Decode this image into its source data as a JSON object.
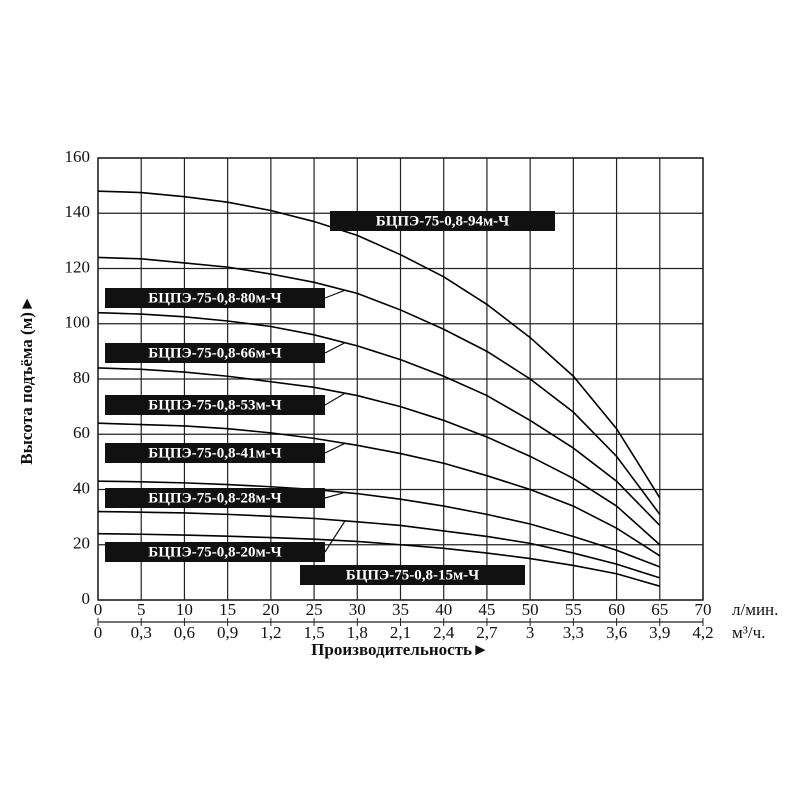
{
  "chart_data": {
    "type": "line",
    "y_label": "Высота подъёма (м)►",
    "x_label": "Производительность►",
    "x_unit": "л/мин.",
    "x2_unit": "м³/ч.",
    "x": [
      0,
      5,
      10,
      15,
      20,
      25,
      30,
      35,
      40,
      45,
      50,
      55,
      60,
      65
    ],
    "series": [
      {
        "name": "БЦПЭ-75-0,8-94м-Ч",
        "color": "#000000",
        "values": [
          148,
          147.5,
          146,
          144,
          141,
          137,
          132,
          125,
          117,
          107,
          95,
          81,
          62,
          37
        ]
      },
      {
        "name": "БЦПЭ-75-0,8-80м-Ч",
        "color": "#000000",
        "values": [
          124,
          123.5,
          122,
          120.5,
          118,
          115,
          111,
          105,
          98,
          90,
          80,
          68,
          52,
          31
        ]
      },
      {
        "name": "БЦПЭ-75-0,8-66м-Ч",
        "color": "#000000",
        "values": [
          104,
          103.5,
          102.5,
          101,
          99,
          96,
          92,
          87,
          81,
          74,
          65,
          55,
          43,
          27
        ]
      },
      {
        "name": "БЦПЭ-75-0,8-53м-Ч",
        "color": "#000000",
        "values": [
          84,
          83.5,
          82.5,
          81,
          79,
          77,
          74,
          70,
          65,
          59,
          52,
          44,
          34,
          20
        ]
      },
      {
        "name": "БЦПЭ-75-0,8-41м-Ч",
        "color": "#000000",
        "values": [
          64,
          63.5,
          63,
          62,
          60.5,
          58.5,
          56,
          53,
          49.5,
          45,
          40,
          34,
          26,
          16
        ]
      },
      {
        "name": "БЦПЭ-75-0,8-28м-Ч",
        "color": "#000000",
        "values": [
          43,
          42.8,
          42.4,
          41.8,
          41,
          40,
          38.5,
          36.5,
          34,
          31,
          27.5,
          23,
          18,
          12
        ]
      },
      {
        "name": "БЦПЭ-75-0,8-20м-Ч",
        "color": "#000000",
        "values": [
          32,
          31.8,
          31.5,
          31,
          30.3,
          29.5,
          28.3,
          27,
          25,
          23,
          20.5,
          17,
          13,
          8
        ]
      },
      {
        "name": "БЦПЭ-75-0,8-15м-Ч",
        "color": "#000000",
        "values": [
          24,
          23.8,
          23.5,
          23.1,
          22.6,
          22,
          21.2,
          20,
          18.7,
          17,
          15,
          12.5,
          9.5,
          5
        ]
      }
    ],
    "xlim": [
      0,
      70
    ],
    "xticks": [
      0,
      5,
      10,
      15,
      20,
      25,
      30,
      35,
      40,
      45,
      50,
      55,
      60,
      65,
      70
    ],
    "x2lim": [
      0,
      4.2
    ],
    "x2ticks": [
      0,
      {
        "value": 0.3,
        "label": "0,3"
      },
      {
        "value": 0.6,
        "label": "0,6"
      },
      {
        "value": 0.9,
        "label": "0,9"
      },
      {
        "value": 1.2,
        "label": "1,2"
      },
      {
        "value": 1.5,
        "label": "1,5"
      },
      {
        "value": 1.8,
        "label": "1,8"
      },
      {
        "value": 2.1,
        "label": "2,1"
      },
      {
        "value": 2.4,
        "label": "2,4"
      },
      {
        "value": 2.7,
        "label": "2,7"
      },
      3,
      {
        "value": 3.3,
        "label": "3,3"
      },
      {
        "value": 3.6,
        "label": "3,6"
      },
      {
        "value": 3.9,
        "label": "3,9"
      },
      {
        "value": 4.2,
        "label": "4,2"
      }
    ],
    "ylim": [
      0,
      160
    ],
    "yticks": [
      0,
      20,
      40,
      60,
      80,
      100,
      120,
      140,
      160
    ],
    "grid": true
  }
}
